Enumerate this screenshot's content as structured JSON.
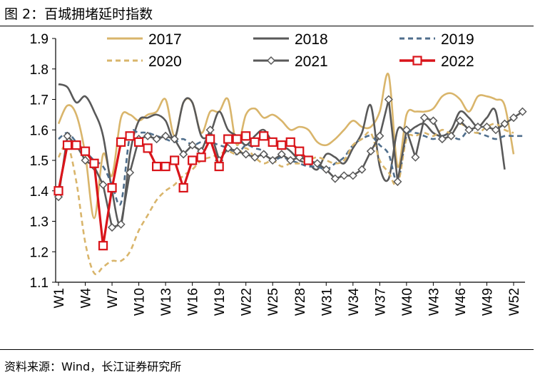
{
  "page": {
    "title": "图 2：百城拥堵延时指数",
    "source": "资料来源：Wind，长江证券研究所"
  },
  "chart_data": {
    "type": "line",
    "title": "百城拥堵延时指数",
    "xlabel": "",
    "ylabel": "",
    "ylim": [
      1.1,
      1.9
    ],
    "yticks": [
      "1.1",
      "1.2",
      "1.3",
      "1.4",
      "1.5",
      "1.6",
      "1.7",
      "1.8",
      "1.9"
    ],
    "xticks": [
      "W1",
      "W4",
      "W7",
      "W10",
      "W13",
      "W16",
      "W19",
      "W22",
      "W25",
      "W28",
      "W31",
      "W34",
      "W37",
      "W40",
      "W43",
      "W46",
      "W49",
      "W52"
    ],
    "x_weeks": 53,
    "series": [
      {
        "name": "2017",
        "color": "#D9B56B",
        "style": "solid",
        "marker": "none",
        "values": [
          1.62,
          1.68,
          1.65,
          1.52,
          1.31,
          1.52,
          1.45,
          1.64,
          1.65,
          1.63,
          1.65,
          1.66,
          1.7,
          1.58,
          1.69,
          1.69,
          1.59,
          1.66,
          1.66,
          1.7,
          1.55,
          1.65,
          1.67,
          1.64,
          1.65,
          1.63,
          1.6,
          1.61,
          1.6,
          1.56,
          1.55,
          1.57,
          1.6,
          1.63,
          1.61,
          1.61,
          1.66,
          1.78,
          1.48,
          1.65,
          1.66,
          1.66,
          1.67,
          1.71,
          1.72,
          1.7,
          1.66,
          1.71,
          1.71,
          1.7,
          1.68,
          1.52
        ]
      },
      {
        "name": "2018",
        "color": "#595959",
        "style": "solid",
        "marker": "none",
        "values": [
          1.75,
          1.74,
          1.69,
          1.71,
          1.66,
          1.58,
          1.4,
          1.29,
          1.52,
          1.63,
          1.64,
          1.65,
          1.63,
          1.57,
          1.69,
          1.69,
          1.58,
          1.59,
          1.66,
          1.6,
          1.58,
          1.55,
          1.58,
          1.6,
          1.56,
          1.55,
          1.53,
          1.5,
          1.49,
          1.47,
          1.52,
          1.51,
          1.49,
          1.54,
          1.59,
          1.68,
          1.48,
          1.44,
          1.6,
          1.59,
          1.61,
          1.62,
          1.59,
          1.58,
          1.6,
          1.66,
          1.64,
          1.61,
          1.64,
          1.66,
          1.47
        ]
      },
      {
        "name": "2019",
        "color": "#4F6E8C",
        "style": "dashed",
        "marker": "none",
        "values": [
          1.57,
          1.59,
          1.56,
          1.53,
          1.5,
          1.48,
          1.42,
          1.36,
          1.58,
          1.59,
          1.59,
          1.58,
          1.57,
          1.56,
          1.57,
          1.55,
          1.56,
          1.56,
          1.55,
          1.54,
          1.52,
          1.55,
          1.54,
          1.53,
          1.5,
          1.51,
          1.5,
          1.49,
          1.48,
          1.48,
          1.47,
          1.49,
          1.51,
          1.55,
          1.57,
          1.58,
          1.55,
          1.52,
          1.43,
          1.58,
          1.59,
          1.58,
          1.57,
          1.58,
          1.58,
          1.57,
          1.6,
          1.59,
          1.58,
          1.57,
          1.58,
          1.58,
          1.58
        ]
      },
      {
        "name": "2020",
        "color": "#D9B56B",
        "style": "dashed",
        "marker": "none",
        "values": [
          1.51,
          1.55,
          1.43,
          1.23,
          1.13,
          1.15,
          1.17,
          1.17,
          1.2,
          1.27,
          1.32,
          1.37,
          1.4,
          1.42,
          1.45,
          1.47,
          1.5,
          1.51,
          1.52,
          1.53,
          1.52,
          1.54,
          1.51,
          1.49,
          1.5,
          1.48,
          1.49,
          1.49,
          1.5,
          1.51,
          1.5,
          1.49,
          1.5,
          1.55,
          1.57,
          1.59,
          1.5,
          1.46,
          1.42,
          1.57,
          1.58,
          1.59,
          1.58,
          1.6,
          1.59,
          1.62,
          1.6,
          1.59,
          1.61,
          1.62,
          1.6,
          1.59
        ]
      },
      {
        "name": "2021",
        "color": "#595959",
        "style": "solid",
        "marker": "diamond",
        "values": [
          1.38,
          1.58,
          1.55,
          1.5,
          1.48,
          1.42,
          1.28,
          1.29,
          1.46,
          1.57,
          1.58,
          1.57,
          1.58,
          1.57,
          1.52,
          1.55,
          1.53,
          1.6,
          1.5,
          1.54,
          1.53,
          1.52,
          1.51,
          1.52,
          1.5,
          1.52,
          1.5,
          1.51,
          1.5,
          1.49,
          1.47,
          1.44,
          1.45,
          1.45,
          1.47,
          1.53,
          1.58,
          1.7,
          1.43,
          1.6,
          1.51,
          1.64,
          1.63,
          1.57,
          1.58,
          1.63,
          1.6,
          1.61,
          1.61,
          1.6,
          1.62,
          1.64,
          1.66
        ]
      },
      {
        "name": "2022",
        "color": "#D9141A",
        "style": "solid",
        "marker": "square",
        "values": [
          1.4,
          1.55,
          1.55,
          1.53,
          1.49,
          1.22,
          1.41,
          1.56,
          1.58,
          1.56,
          1.54,
          1.48,
          1.48,
          1.5,
          1.41,
          1.5,
          1.51,
          1.57,
          1.48,
          1.57,
          1.57,
          1.58,
          1.56,
          1.58,
          1.56,
          1.55,
          1.56,
          1.53,
          1.5
        ]
      }
    ]
  }
}
